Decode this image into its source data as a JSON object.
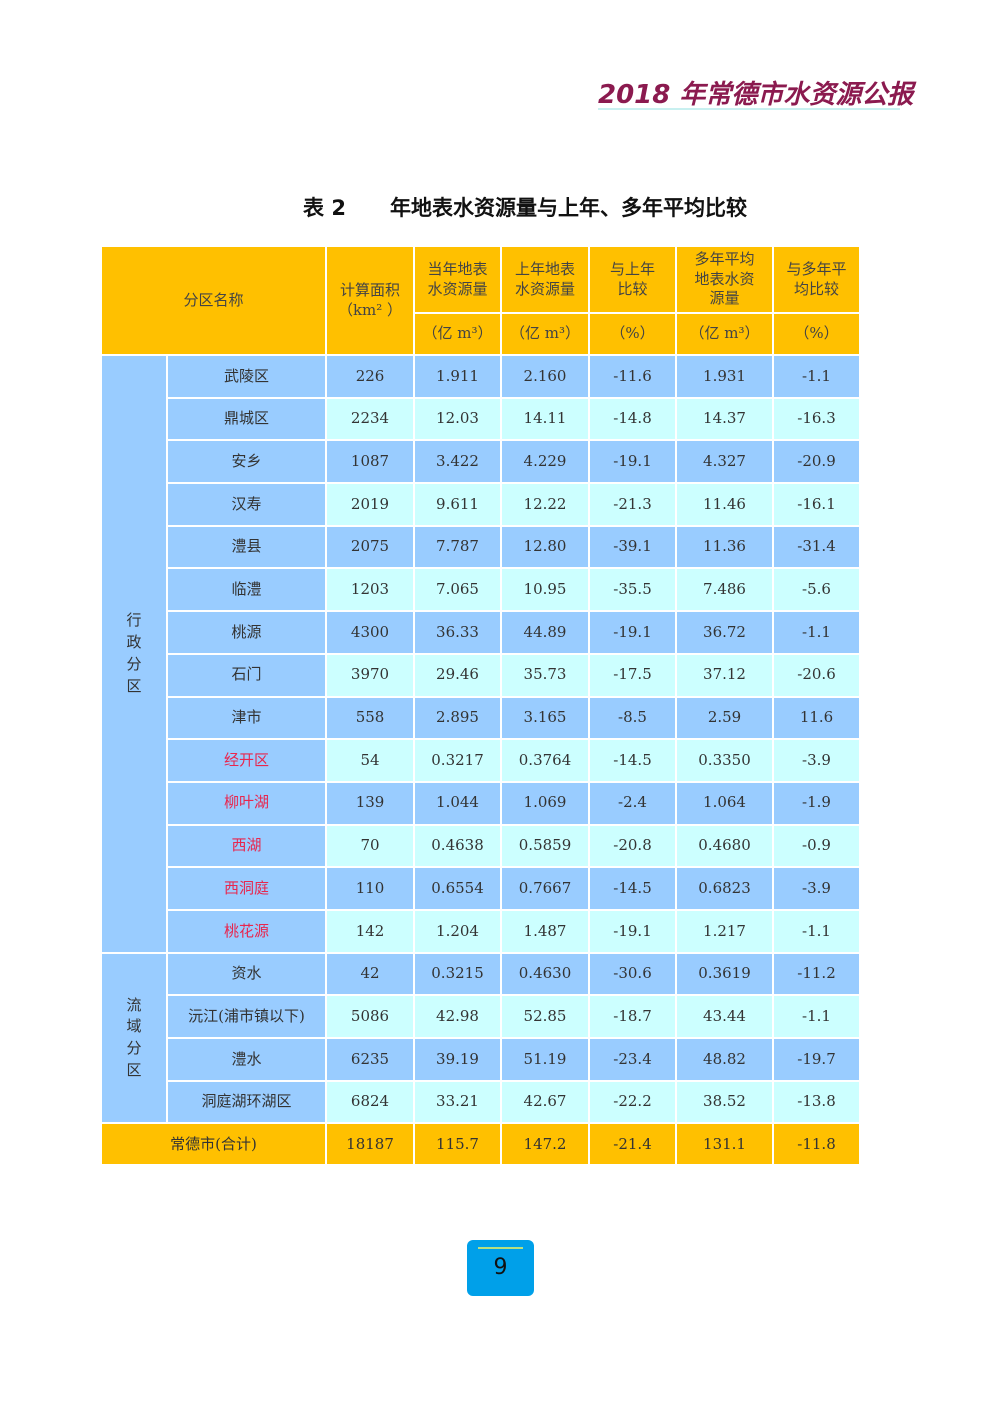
{
  "header": {
    "title": "2018 年常德市水资源公报"
  },
  "table_title": {
    "label": "表 2",
    "text": "年地表水资源量与上年、多年平均比较"
  },
  "columns": {
    "name": "分区名称",
    "area": "计算面积",
    "area_unit": "（km² ）",
    "current": "当年地表水资源量",
    "current_unit": "（亿 m³）",
    "last": "上年地表水资源量",
    "last_unit": "（亿 m³）",
    "vs_last": "与上年比较",
    "vs_last_unit": "（%）",
    "avg": "多年平均地表水资源量",
    "avg_unit": "（亿 m³）",
    "vs_avg": "与多年平均比较",
    "vs_avg_unit": "（%）"
  },
  "groups": {
    "admin": "行政分区",
    "basin": "流域分区"
  },
  "rows": [
    {
      "name": "武陵区",
      "area": "226",
      "current": "1.911",
      "last": "2.160",
      "vs_last": "-11.6",
      "avg": "1.931",
      "vs_avg": "-1.1"
    },
    {
      "name": "鼎城区",
      "area": "2234",
      "current": "12.03",
      "last": "14.11",
      "vs_last": "-14.8",
      "avg": "14.37",
      "vs_avg": "-16.3"
    },
    {
      "name": "安乡",
      "area": "1087",
      "current": "3.422",
      "last": "4.229",
      "vs_last": "-19.1",
      "avg": "4.327",
      "vs_avg": "-20.9"
    },
    {
      "name": "汉寿",
      "area": "2019",
      "current": "9.611",
      "last": "12.22",
      "vs_last": "-21.3",
      "avg": "11.46",
      "vs_avg": "-16.1"
    },
    {
      "name": "澧县",
      "area": "2075",
      "current": "7.787",
      "last": "12.80",
      "vs_last": "-39.1",
      "avg": "11.36",
      "vs_avg": "-31.4"
    },
    {
      "name": "临澧",
      "area": "1203",
      "current": "7.065",
      "last": "10.95",
      "vs_last": "-35.5",
      "avg": "7.486",
      "vs_avg": "-5.6"
    },
    {
      "name": "桃源",
      "area": "4300",
      "current": "36.33",
      "last": "44.89",
      "vs_last": "-19.1",
      "avg": "36.72",
      "vs_avg": "-1.1"
    },
    {
      "name": "石门",
      "area": "3970",
      "current": "29.46",
      "last": "35.73",
      "vs_last": "-17.5",
      "avg": "37.12",
      "vs_avg": "-20.6"
    },
    {
      "name": "津市",
      "area": "558",
      "current": "2.895",
      "last": "3.165",
      "vs_last": "-8.5",
      "avg": "2.59",
      "vs_avg": "11.6"
    },
    {
      "name": "经开区",
      "area": "54",
      "current": "0.3217",
      "last": "0.3764",
      "vs_last": "-14.5",
      "avg": "0.3350",
      "vs_avg": "-3.9",
      "red": true
    },
    {
      "name": "柳叶湖",
      "area": "139",
      "current": "1.044",
      "last": "1.069",
      "vs_last": "-2.4",
      "avg": "1.064",
      "vs_avg": "-1.9",
      "red": true
    },
    {
      "name": "西湖",
      "area": "70",
      "current": "0.4638",
      "last": "0.5859",
      "vs_last": "-20.8",
      "avg": "0.4680",
      "vs_avg": "-0.9",
      "red": true
    },
    {
      "name": "西洞庭",
      "area": "110",
      "current": "0.6554",
      "last": "0.7667",
      "vs_last": "-14.5",
      "avg": "0.6823",
      "vs_avg": "-3.9",
      "red": true
    },
    {
      "name": "桃花源",
      "area": "142",
      "current": "1.204",
      "last": "1.487",
      "vs_last": "-19.1",
      "avg": "1.217",
      "vs_avg": "-1.1",
      "red": true
    },
    {
      "name": "资水",
      "area": "42",
      "current": "0.3215",
      "last": "0.4630",
      "vs_last": "-30.6",
      "avg": "0.3619",
      "vs_avg": "-11.2"
    },
    {
      "name": "沅江(浦市镇以下)",
      "area": "5086",
      "current": "42.98",
      "last": "52.85",
      "vs_last": "-18.7",
      "avg": "43.44",
      "vs_avg": "-1.1"
    },
    {
      "name": "澧水",
      "area": "6235",
      "current": "39.19",
      "last": "51.19",
      "vs_last": "-23.4",
      "avg": "48.82",
      "vs_avg": "-19.7"
    },
    {
      "name": "洞庭湖环湖区",
      "area": "6824",
      "current": "33.21",
      "last": "42.67",
      "vs_last": "-22.2",
      "avg": "38.52",
      "vs_avg": "-13.8"
    }
  ],
  "total": {
    "name": "常德市(合计)",
    "area": "18187",
    "current": "115.7",
    "last": "147.2",
    "vs_last": "-21.4",
    "avg": "131.1",
    "vs_avg": "-11.8"
  },
  "page_number": "9",
  "colors": {
    "header": "#ffc000",
    "row_blue": "#99ccff",
    "row_cyan": "#ccffff",
    "title": "#8b1a4f",
    "highlight_text": "#e8264e",
    "page_box": "#00a0e9"
  }
}
